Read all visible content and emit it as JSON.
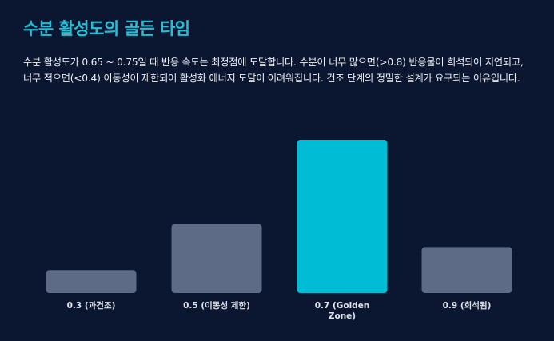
{
  "header": {
    "title": "수분 활성도의 골든 타임",
    "description": "수분 활성도가 0.65 ~ 0.75일 때 반응 속도는 최정점에 도달합니다. 수분이 너무 많으면(>0.8) 반응물이 희석되어 지연되고, 너무 적으면(<0.4) 이동성이 제한되어 활성화 에너지 도달이 어려워집니다. 건조 단계의 정밀한 설계가 요구되는 이유입니다."
  },
  "colors": {
    "background": "#0b1630",
    "title": "#21bfd8",
    "bar_default": "#5d6b86",
    "bar_highlight": "#00bcd4",
    "tick_label": "#dfe3ea"
  },
  "chart_data": {
    "type": "bar",
    "categories": [
      "0.3 (과건조)",
      "0.5 (이동성 제한)",
      "0.7 (Golden Zone)",
      "0.9 (희석됨)"
    ],
    "tick_lines": [
      [
        "0.3 (과건조)"
      ],
      [
        "0.5 (이동성 제한)"
      ],
      [
        "0.7 (Golden",
        "Zone)"
      ],
      [
        "0.9 (희석됨)"
      ]
    ],
    "values": [
      15,
      45,
      100,
      30
    ],
    "highlight_index": 2,
    "ylim": [
      0,
      100
    ],
    "grid": false,
    "xlabel": "",
    "ylabel": ""
  }
}
